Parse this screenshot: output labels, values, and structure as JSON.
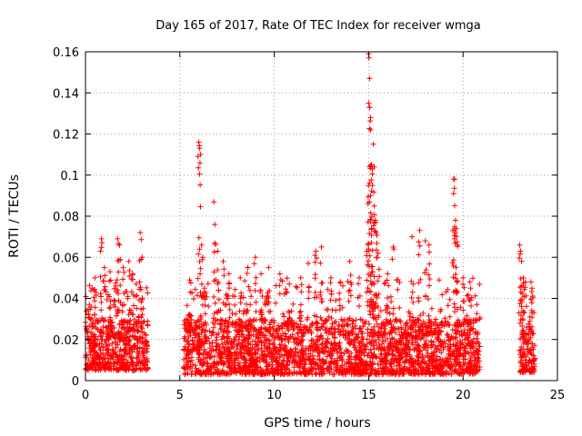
{
  "chart_data": {
    "type": "scatter",
    "title": "Day 165 of 2017, Rate Of TEC Index for receiver wmga",
    "xlabel": "GPS time / hours",
    "ylabel": "ROTI / TECUs",
    "xlim": [
      0,
      25
    ],
    "ylim": [
      0,
      0.16
    ],
    "xticks": [
      0,
      5,
      10,
      15,
      20,
      25
    ],
    "yticks": [
      0,
      0.02,
      0.04,
      0.06,
      0.08,
      0.1,
      0.12,
      0.14,
      0.16
    ],
    "xtick_labels": [
      "0",
      "5",
      "10",
      "15",
      "20",
      "25"
    ],
    "ytick_labels": [
      "0",
      "0.02",
      "0.04",
      "0.06",
      "0.08",
      "0.1",
      "0.12",
      "0.14",
      "0.16"
    ],
    "grid": true,
    "marker": "+",
    "color": "#ff0000",
    "series": [
      {
        "name": "ROTI",
        "segments": [
          {
            "x_start": 0.0,
            "x_end": 3.3,
            "base_min": 0.005,
            "base_max": 0.03
          },
          {
            "x_start": 5.2,
            "x_end": 20.9,
            "base_min": 0.003,
            "base_max": 0.03
          },
          {
            "x_start": 23.0,
            "x_end": 23.8,
            "base_min": 0.004,
            "base_max": 0.03
          }
        ],
        "peaks": [
          {
            "x": 0.2,
            "y": 0.037
          },
          {
            "x": 0.35,
            "y": 0.045
          },
          {
            "x": 0.5,
            "y": 0.05
          },
          {
            "x": 0.8,
            "y": 0.063
          },
          {
            "x": 0.85,
            "y": 0.069
          },
          {
            "x": 1.0,
            "y": 0.055
          },
          {
            "x": 1.3,
            "y": 0.053
          },
          {
            "x": 1.6,
            "y": 0.046
          },
          {
            "x": 1.7,
            "y": 0.069
          },
          {
            "x": 1.8,
            "y": 0.066
          },
          {
            "x": 2.0,
            "y": 0.055
          },
          {
            "x": 2.3,
            "y": 0.058
          },
          {
            "x": 2.5,
            "y": 0.052
          },
          {
            "x": 2.9,
            "y": 0.072
          },
          {
            "x": 3.0,
            "y": 0.06
          },
          {
            "x": 5.5,
            "y": 0.032
          },
          {
            "x": 6.0,
            "y": 0.116
          },
          {
            "x": 6.05,
            "y": 0.113
          },
          {
            "x": 6.1,
            "y": 0.11
          },
          {
            "x": 6.15,
            "y": 0.066
          },
          {
            "x": 6.3,
            "y": 0.045
          },
          {
            "x": 6.8,
            "y": 0.087
          },
          {
            "x": 6.85,
            "y": 0.076
          },
          {
            "x": 7.0,
            "y": 0.063
          },
          {
            "x": 7.3,
            "y": 0.058
          },
          {
            "x": 7.6,
            "y": 0.052
          },
          {
            "x": 8.2,
            "y": 0.05
          },
          {
            "x": 8.6,
            "y": 0.055
          },
          {
            "x": 9.0,
            "y": 0.06
          },
          {
            "x": 9.3,
            "y": 0.052
          },
          {
            "x": 9.7,
            "y": 0.055
          },
          {
            "x": 10.3,
            "y": 0.052
          },
          {
            "x": 10.8,
            "y": 0.047
          },
          {
            "x": 11.4,
            "y": 0.05
          },
          {
            "x": 11.8,
            "y": 0.057
          },
          {
            "x": 12.2,
            "y": 0.063
          },
          {
            "x": 12.5,
            "y": 0.065
          },
          {
            "x": 13.0,
            "y": 0.05
          },
          {
            "x": 13.5,
            "y": 0.048
          },
          {
            "x": 14.0,
            "y": 0.058
          },
          {
            "x": 14.5,
            "y": 0.05
          },
          {
            "x": 14.9,
            "y": 0.063
          },
          {
            "x": 15.0,
            "y": 0.159
          },
          {
            "x": 15.02,
            "y": 0.157
          },
          {
            "x": 15.05,
            "y": 0.147
          },
          {
            "x": 15.0,
            "y": 0.135
          },
          {
            "x": 15.05,
            "y": 0.133
          },
          {
            "x": 15.1,
            "y": 0.128
          },
          {
            "x": 15.1,
            "y": 0.122
          },
          {
            "x": 15.15,
            "y": 0.105
          },
          {
            "x": 15.2,
            "y": 0.103
          },
          {
            "x": 15.25,
            "y": 0.115
          },
          {
            "x": 15.3,
            "y": 0.104
          },
          {
            "x": 15.2,
            "y": 0.095
          },
          {
            "x": 15.1,
            "y": 0.09
          },
          {
            "x": 15.3,
            "y": 0.085
          },
          {
            "x": 15.35,
            "y": 0.078
          },
          {
            "x": 15.4,
            "y": 0.072
          },
          {
            "x": 15.5,
            "y": 0.062
          },
          {
            "x": 16.0,
            "y": 0.052
          },
          {
            "x": 16.3,
            "y": 0.065
          },
          {
            "x": 17.3,
            "y": 0.07
          },
          {
            "x": 17.7,
            "y": 0.073
          },
          {
            "x": 18.0,
            "y": 0.068
          },
          {
            "x": 18.2,
            "y": 0.066
          },
          {
            "x": 19.5,
            "y": 0.098
          },
          {
            "x": 19.55,
            "y": 0.098
          },
          {
            "x": 19.5,
            "y": 0.091
          },
          {
            "x": 19.6,
            "y": 0.078
          },
          {
            "x": 19.65,
            "y": 0.074
          },
          {
            "x": 19.6,
            "y": 0.072
          },
          {
            "x": 19.7,
            "y": 0.066
          },
          {
            "x": 20.0,
            "y": 0.05
          },
          {
            "x": 20.4,
            "y": 0.045
          },
          {
            "x": 23.0,
            "y": 0.066
          },
          {
            "x": 23.05,
            "y": 0.063
          },
          {
            "x": 23.1,
            "y": 0.058
          },
          {
            "x": 23.2,
            "y": 0.05
          },
          {
            "x": 23.6,
            "y": 0.048
          },
          {
            "x": 23.65,
            "y": 0.045
          }
        ]
      }
    ]
  }
}
